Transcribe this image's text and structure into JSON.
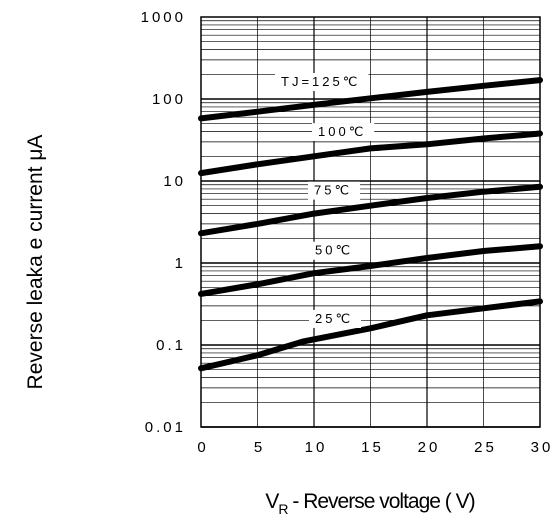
{
  "chart_data": {
    "type": "line",
    "title": "",
    "xlabel": "V_R - Reverse voltage ( V)",
    "xlabel_parts": {
      "main": "V",
      "sub": "R",
      "rest": " - Reverse voltage ( V)"
    },
    "ylabel": "Reverse leaka  e current   μA",
    "x_ticks": [
      "0",
      "5",
      "10",
      "15",
      "20",
      "25",
      "30"
    ],
    "y_ticks": [
      "1000",
      "100",
      "10",
      "1",
      "0.1",
      "0.01"
    ],
    "xlim": [
      0,
      30
    ],
    "ylim": [
      0.01,
      1000
    ],
    "y_scale": "log",
    "grid": true,
    "series": [
      {
        "name": "TJ=125℃",
        "x": [
          0,
          5,
          10,
          15,
          20,
          25,
          30
        ],
        "y": [
          58,
          70,
          85,
          102,
          122,
          145,
          170
        ]
      },
      {
        "name": "100℃",
        "x": [
          0,
          5,
          10,
          15,
          20,
          25,
          30
        ],
        "y": [
          12.5,
          16,
          20,
          25,
          28,
          33,
          38
        ]
      },
      {
        "name": "75℃",
        "x": [
          0,
          5,
          10,
          15,
          20,
          25,
          30
        ],
        "y": [
          2.3,
          3,
          4,
          5,
          6.2,
          7.4,
          8.5
        ]
      },
      {
        "name": "50℃",
        "x": [
          0,
          5,
          10,
          15,
          20,
          25,
          30
        ],
        "y": [
          0.42,
          0.55,
          0.75,
          0.92,
          1.15,
          1.4,
          1.6
        ]
      },
      {
        "name": "25℃",
        "x": [
          0,
          5,
          9,
          15,
          20,
          25,
          30
        ],
        "y": [
          0.052,
          0.075,
          0.11,
          0.16,
          0.23,
          0.28,
          0.34
        ]
      }
    ]
  }
}
